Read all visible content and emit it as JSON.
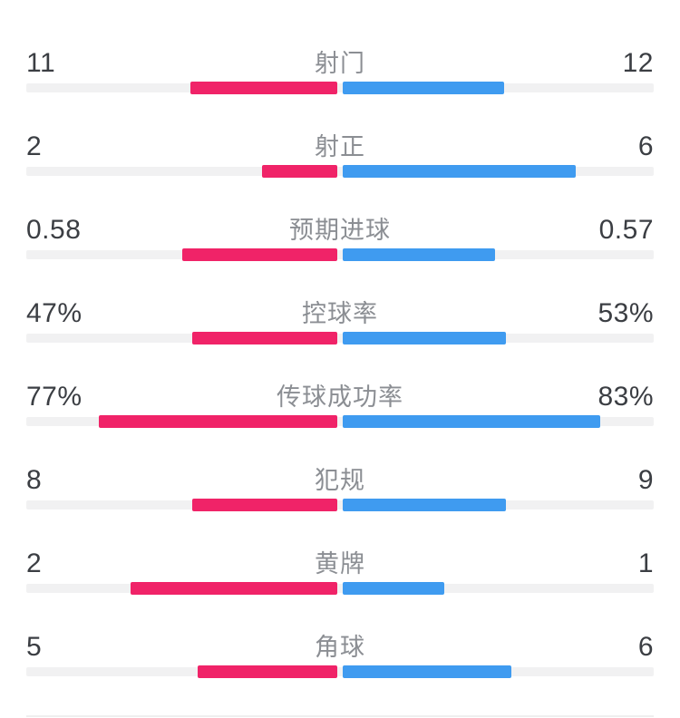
{
  "colors": {
    "home": "#F02368",
    "away": "#3F9BF0",
    "track": "#F1F1F2",
    "divider": "#EFEFEF",
    "value_text": "#3B3E43",
    "label_text": "#8B8E93",
    "background": "#FFFFFF"
  },
  "chart_data": {
    "type": "bar",
    "subtype": "diverging-comparison",
    "orientation": "horizontal",
    "home_side": "left",
    "away_side": "right",
    "rows": [
      {
        "label": "射门",
        "home_display": "11",
        "away_display": "12",
        "home_value": 11,
        "away_value": 12,
        "format": "count"
      },
      {
        "label": "射正",
        "home_display": "2",
        "away_display": "6",
        "home_value": 2,
        "away_value": 6,
        "format": "count"
      },
      {
        "label": "预期进球",
        "home_display": "0.58",
        "away_display": "0.57",
        "home_value": 0.58,
        "away_value": 0.57,
        "format": "count"
      },
      {
        "label": "控球率",
        "home_display": "47%",
        "away_display": "53%",
        "home_value": 47,
        "away_value": 53,
        "format": "percent"
      },
      {
        "label": "传球成功率",
        "home_display": "77%",
        "away_display": "83%",
        "home_value": 77,
        "away_value": 83,
        "format": "percent"
      },
      {
        "label": "犯规",
        "home_display": "8",
        "away_display": "9",
        "home_value": 8,
        "away_value": 9,
        "format": "count"
      },
      {
        "label": "黄牌",
        "home_display": "2",
        "away_display": "1",
        "home_value": 2,
        "away_value": 1,
        "format": "count"
      },
      {
        "label": "角球",
        "home_display": "5",
        "away_display": "6",
        "home_value": 5,
        "away_value": 6,
        "format": "count"
      }
    ]
  }
}
